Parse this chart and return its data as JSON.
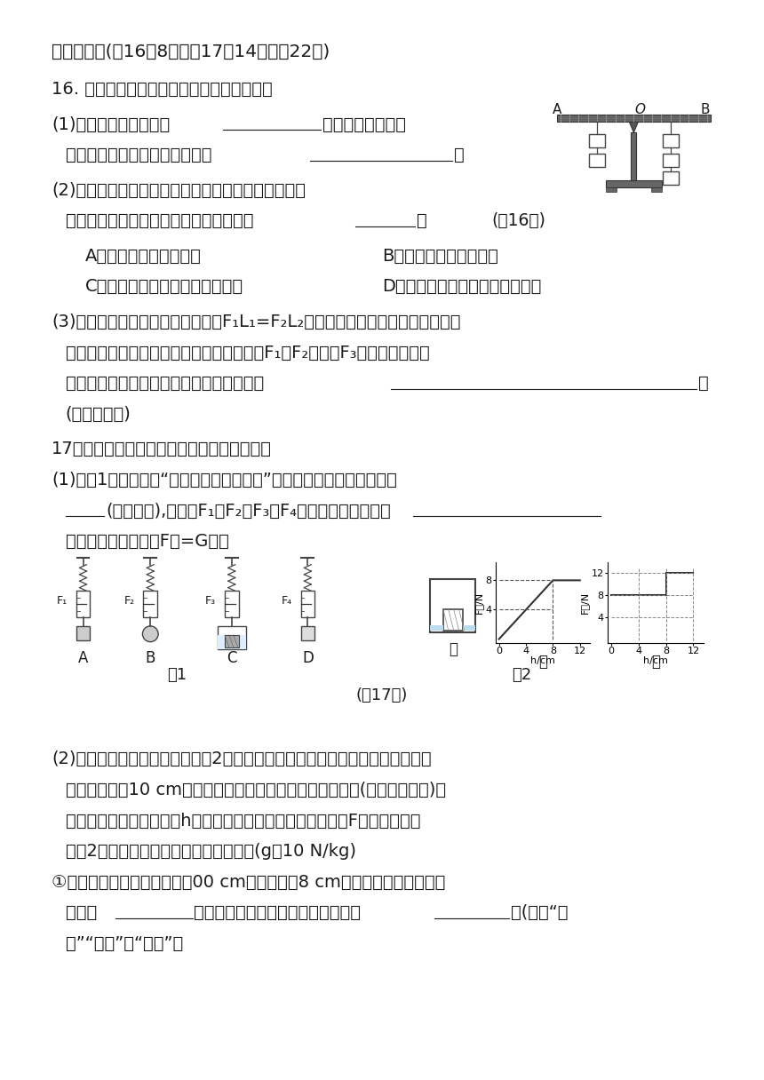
{
  "bg_color": "#ffffff",
  "text_color": "#1a1a1a",
  "title": "四、实验题(第16题8分，第17题14分，共22分)",
  "section16_title": "16. 用如图所示的器材探究杠杆的平衡条件。",
  "q16_2a": "A．只把右侧钩码向右移",
  "q16_2b": "B．只把左侧钩码向左移",
  "q16_2c": "C．把左右两侧钩码同时向左移动",
  "q16_2d": "D．把左右两侧钩码同时向右移动",
  "section17_title": "17．物理兴趣小组同学探究浮力的有关问题。",
  "fig1_label": "图1",
  "fig2_label": "图2",
  "q17_topic_label": "(第17题)"
}
